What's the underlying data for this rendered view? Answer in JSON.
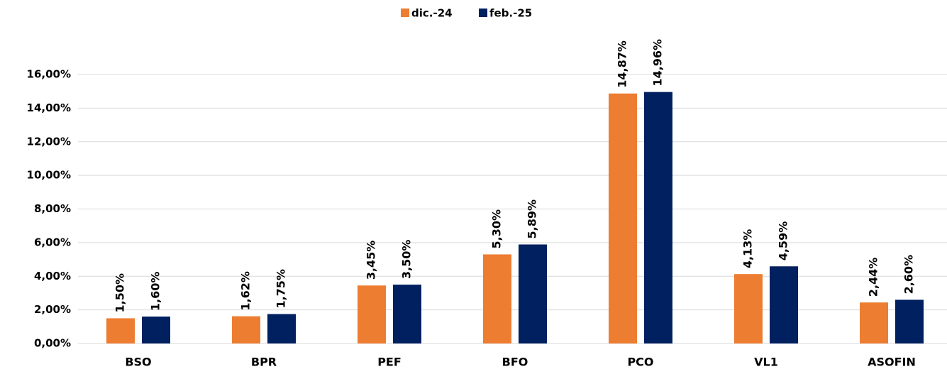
{
  "chart_data": {
    "type": "bar",
    "categories": [
      "BSO",
      "BPR",
      "PEF",
      "BFO",
      "PCO",
      "VL1",
      "ASOFIN"
    ],
    "series": [
      {
        "name": "dic.-24",
        "color": "#ED7D31",
        "values": [
          1.5,
          1.62,
          3.45,
          5.3,
          14.87,
          4.13,
          2.44
        ],
        "value_labels": [
          "1,50%",
          "1,62%",
          "3,45%",
          "5,30%",
          "14,87%",
          "4,13%",
          "2,44%"
        ]
      },
      {
        "name": "feb.-25",
        "color": "#002060",
        "values": [
          1.6,
          1.75,
          3.5,
          5.89,
          14.96,
          4.59,
          2.6
        ],
        "value_labels": [
          "1,60%",
          "1,75%",
          "3,50%",
          "5,89%",
          "14,96%",
          "4,59%",
          "2,60%"
        ]
      }
    ],
    "ylim": [
      0,
      16
    ],
    "yticks": [
      {
        "value": 0,
        "label": "0,00%"
      },
      {
        "value": 2,
        "label": "2,00%"
      },
      {
        "value": 4,
        "label": "4,00%"
      },
      {
        "value": 6,
        "label": "6,00%"
      },
      {
        "value": 8,
        "label": "8,00%"
      },
      {
        "value": 10,
        "label": "10,00%"
      },
      {
        "value": 12,
        "label": "12,00%"
      },
      {
        "value": 14,
        "label": "14,00%"
      },
      {
        "value": 16,
        "label": "16,00%"
      }
    ],
    "grid": true,
    "legend": "top"
  }
}
